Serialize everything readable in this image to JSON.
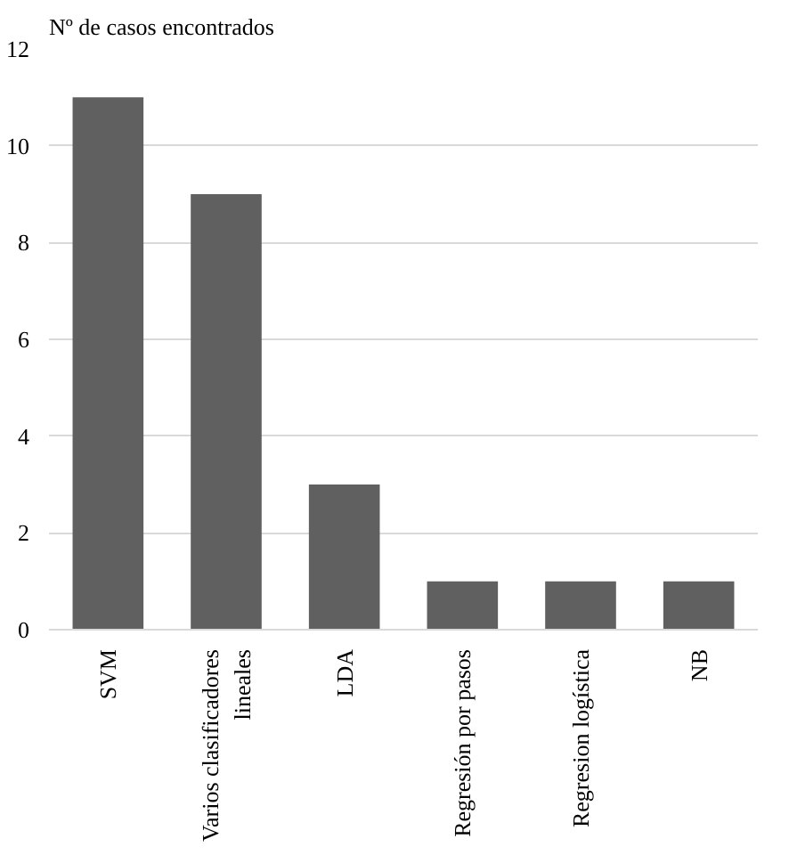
{
  "chart_data": {
    "type": "bar",
    "ylabel": "Nº de casos encontrados",
    "categories": [
      "SVM",
      "Varios clasificadores\nlineales",
      "LDA",
      "Regresión por pasos",
      "Regresion logística",
      "NB"
    ],
    "values": [
      11,
      9,
      3,
      1,
      1,
      1
    ],
    "color": "#606060",
    "ylim": [
      0,
      12
    ],
    "yticks": [
      0,
      2,
      4,
      6,
      8,
      10,
      12
    ],
    "grid": "y"
  }
}
